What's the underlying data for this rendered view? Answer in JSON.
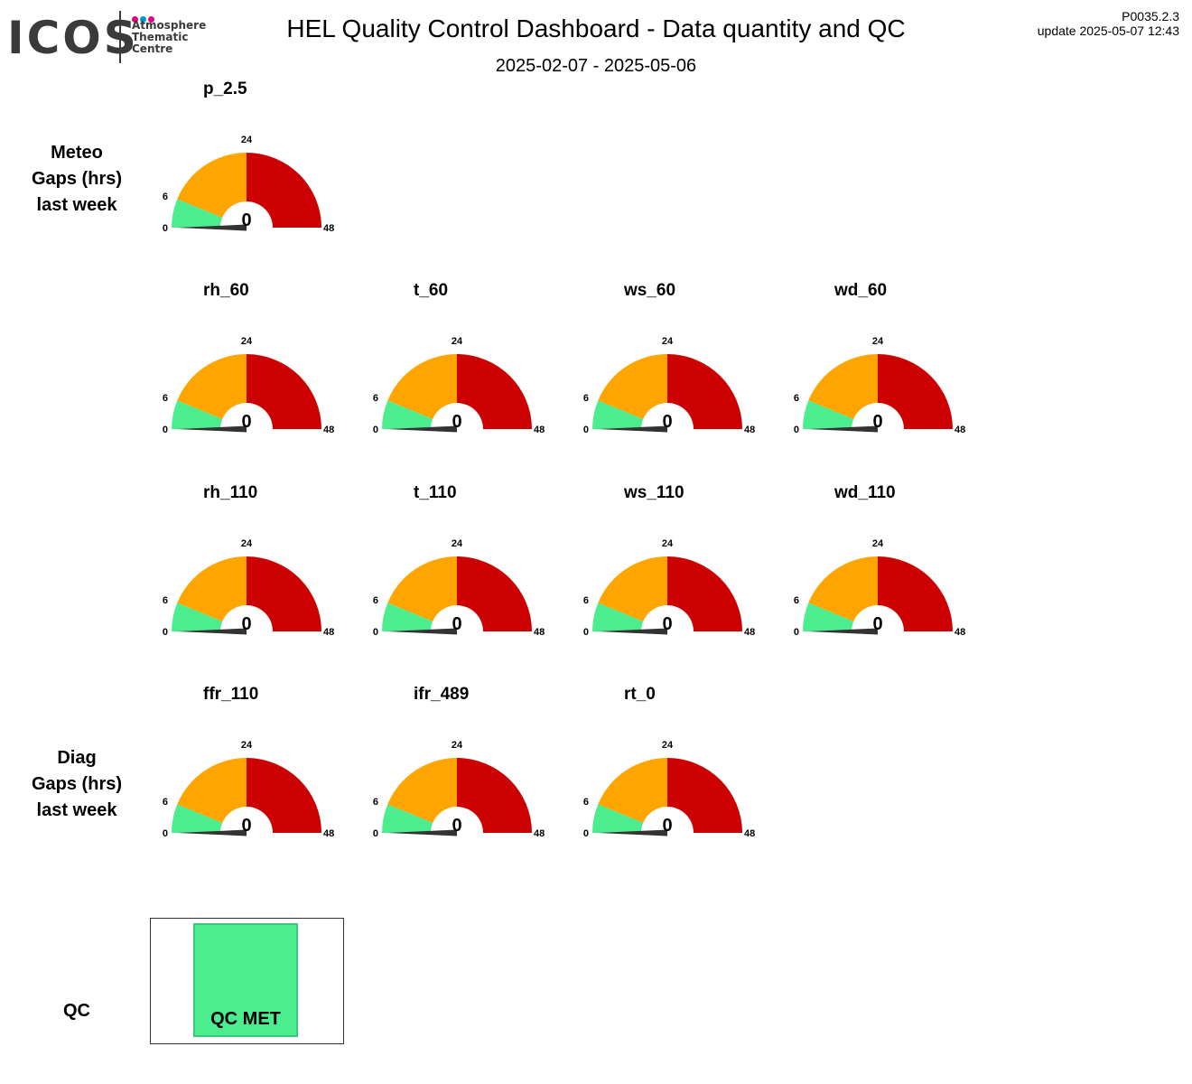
{
  "logo": {
    "word": "ICOS",
    "lines": [
      "Atmosphere",
      "Thematic",
      "Centre"
    ],
    "dot_colors": [
      "#e6007e",
      "#0095d9",
      "#e6007e"
    ]
  },
  "header": {
    "title": "HEL  Quality Control Dashboard - Data quantity and QC",
    "period": "2025-02-07 - 2025-05-06",
    "version": "P0035.2.3",
    "update": "update  2025-05-07 12:43"
  },
  "row_labels": {
    "meteo": [
      "Meteo",
      "Gaps (hrs)",
      "last week"
    ],
    "diag": [
      "Diag",
      "Gaps (hrs)",
      "last week"
    ],
    "qc": "QC"
  },
  "colors": {
    "green": "#4ced8f",
    "orange": "#ffa500",
    "red": "#cc0000",
    "needle": "#333333"
  },
  "chart_data": {
    "type": "gauge",
    "unit": "hours",
    "range": [
      0,
      48
    ],
    "ticks": [
      0,
      6,
      24,
      48
    ],
    "bands": [
      {
        "from": 0,
        "to": 6,
        "color": "#4ced8f"
      },
      {
        "from": 6,
        "to": 24,
        "color": "#ffa500"
      },
      {
        "from": 24,
        "to": 48,
        "color": "#cc0000"
      }
    ],
    "gauges": [
      {
        "name": "p_2.5",
        "value": 0
      },
      {
        "name": "rh_60",
        "value": 0
      },
      {
        "name": "t_60",
        "value": 0
      },
      {
        "name": "ws_60",
        "value": 0
      },
      {
        "name": "wd_60",
        "value": 0
      },
      {
        "name": "rh_110",
        "value": 0
      },
      {
        "name": "t_110",
        "value": 0
      },
      {
        "name": "ws_110",
        "value": 0
      },
      {
        "name": "wd_110",
        "value": 0
      },
      {
        "name": "ffr_110",
        "value": 0
      },
      {
        "name": "ifr_489",
        "value": 0
      },
      {
        "name": "rt_0",
        "value": 0
      }
    ]
  },
  "qc": {
    "label": "QC MET",
    "status_color": "#4ced8f"
  }
}
